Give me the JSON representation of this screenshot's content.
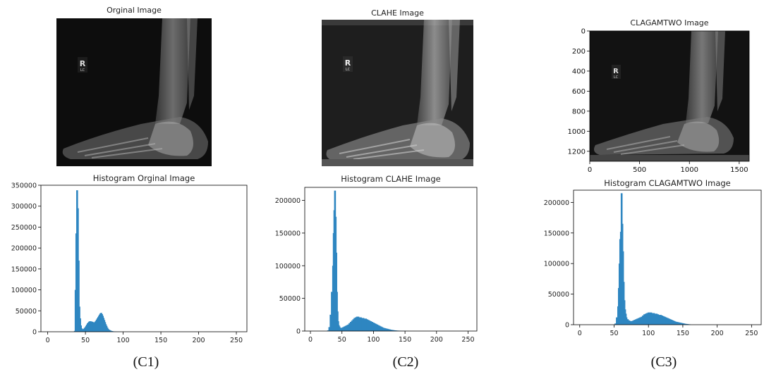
{
  "images": [
    {
      "title": "Orginal Image",
      "marker": "R",
      "marker_sub": "LC"
    },
    {
      "title": "CLAHE Image",
      "marker": "R",
      "marker_sub": "LC"
    },
    {
      "title": "CLAGAMTWO Image",
      "marker": "R",
      "marker_sub": "LC",
      "axes": {
        "x_ticks": [
          "0",
          "500",
          "1000",
          "1500"
        ],
        "y_ticks": [
          "0",
          "200",
          "400",
          "600",
          "800",
          "1000",
          "1200"
        ]
      }
    }
  ],
  "captions": [
    "(C1)",
    "(C2)",
    "(C3)"
  ],
  "chart_data": [
    {
      "type": "bar",
      "title": "Histogram Orginal Image",
      "xlim": [
        -9,
        264
      ],
      "ylim": [
        0,
        350000
      ],
      "x_ticks": [
        0,
        50,
        100,
        150,
        200,
        250
      ],
      "y_ticks": [
        0,
        50000,
        100000,
        150000,
        200000,
        250000,
        300000,
        350000
      ],
      "x_tick_labels": [
        "0",
        "50",
        "100",
        "150",
        "200",
        "250"
      ],
      "y_tick_labels": [
        "0",
        "50000",
        "100000",
        "150000",
        "200000",
        "250000",
        "300000",
        "350000"
      ],
      "color": "#2e86c1",
      "x": [
        36,
        37,
        38,
        39,
        40,
        41,
        42,
        43,
        44,
        45,
        46,
        47,
        48,
        49,
        50,
        51,
        52,
        53,
        54,
        55,
        56,
        57,
        58,
        59,
        60,
        61,
        62,
        63,
        64,
        65,
        66,
        67,
        68,
        69,
        70,
        71,
        72,
        73,
        74,
        75,
        76,
        77,
        78,
        79,
        80,
        81,
        82,
        83,
        84,
        85,
        86,
        87,
        88,
        89,
        90,
        92,
        94,
        96
      ],
      "values": [
        2000,
        100000,
        235000,
        338000,
        295000,
        170000,
        60000,
        32000,
        15000,
        8000,
        6000,
        6000,
        7000,
        9000,
        11000,
        14000,
        17000,
        20000,
        22000,
        24000,
        25000,
        25000,
        24000,
        24000,
        23000,
        22000,
        22000,
        24000,
        26000,
        29000,
        32000,
        35000,
        38000,
        41000,
        44000,
        45000,
        42000,
        38000,
        33000,
        28000,
        23000,
        18000,
        14000,
        10000,
        7000,
        5000,
        4000,
        3000,
        2200,
        1600,
        1200,
        900,
        700,
        500,
        400,
        300,
        200,
        100
      ]
    },
    {
      "type": "bar",
      "title": "Histogram CLAHE Image",
      "xlim": [
        -9,
        264
      ],
      "ylim": [
        0,
        220000
      ],
      "x_ticks": [
        0,
        50,
        100,
        150,
        200,
        250
      ],
      "y_ticks": [
        0,
        50000,
        100000,
        150000,
        200000
      ],
      "x_tick_labels": [
        "0",
        "50",
        "100",
        "150",
        "200",
        "250"
      ],
      "y_tick_labels": [
        "0",
        "50000",
        "100000",
        "150000",
        "200000"
      ],
      "color": "#2e86c1",
      "x": [
        28,
        30,
        32,
        34,
        36,
        37,
        38,
        39,
        40,
        41,
        42,
        43,
        44,
        45,
        46,
        48,
        50,
        52,
        54,
        56,
        58,
        60,
        62,
        64,
        66,
        68,
        70,
        72,
        74,
        76,
        78,
        80,
        82,
        84,
        86,
        88,
        90,
        92,
        94,
        96,
        98,
        100,
        102,
        104,
        106,
        108,
        110,
        112,
        114,
        116,
        118,
        120,
        122,
        124,
        126,
        128,
        130,
        132,
        134,
        136,
        138,
        140,
        142,
        144,
        146,
        148,
        150,
        152,
        155
      ],
      "values": [
        1000,
        6000,
        25000,
        60000,
        100000,
        150000,
        185000,
        215000,
        175000,
        120000,
        60000,
        30000,
        15000,
        9000,
        7000,
        5000,
        5000,
        6000,
        7000,
        8000,
        9000,
        10000,
        12000,
        14000,
        16000,
        18000,
        20000,
        21000,
        22000,
        22000,
        21000,
        21000,
        20000,
        20000,
        19000,
        19000,
        18000,
        17000,
        16000,
        15000,
        14000,
        13000,
        12000,
        11000,
        10000,
        9000,
        8000,
        7000,
        6000,
        5000,
        4500,
        4000,
        3500,
        3000,
        2500,
        2000,
        1700,
        1400,
        1100,
        900,
        700,
        600,
        500,
        400,
        300,
        250,
        200,
        150,
        100
      ]
    },
    {
      "type": "bar",
      "title": "Histogram CLAGAMTWO Image",
      "xlim": [
        -9,
        264
      ],
      "ylim": [
        0,
        220000
      ],
      "x_ticks": [
        0,
        50,
        100,
        150,
        200,
        250
      ],
      "y_ticks": [
        0,
        50000,
        100000,
        150000,
        200000
      ],
      "x_tick_labels": [
        "0",
        "50",
        "100",
        "150",
        "200",
        "250"
      ],
      "y_tick_labels": [
        "0",
        "50000",
        "100000",
        "150000",
        "200000"
      ],
      "color": "#2e86c1",
      "x": [
        52,
        54,
        56,
        57,
        58,
        59,
        60,
        61,
        62,
        63,
        64,
        65,
        66,
        67,
        68,
        70,
        72,
        74,
        76,
        78,
        80,
        82,
        84,
        86,
        88,
        90,
        92,
        94,
        96,
        98,
        100,
        102,
        104,
        106,
        108,
        110,
        112,
        114,
        116,
        118,
        120,
        122,
        124,
        126,
        128,
        130,
        132,
        134,
        136,
        138,
        140,
        142,
        144,
        146,
        148,
        150,
        152,
        154,
        156,
        158,
        160
      ],
      "values": [
        2000,
        12000,
        30000,
        60000,
        100000,
        140000,
        152000,
        215000,
        165000,
        120000,
        70000,
        40000,
        25000,
        18000,
        12000,
        9000,
        7000,
        6000,
        6000,
        7000,
        8000,
        9000,
        10000,
        11000,
        12000,
        13000,
        15000,
        17000,
        18000,
        19000,
        20000,
        20000,
        20000,
        19000,
        19000,
        18000,
        18000,
        17000,
        16000,
        16000,
        15000,
        14000,
        13000,
        12000,
        11000,
        10000,
        9000,
        8000,
        7000,
        6000,
        5000,
        4500,
        4000,
        3500,
        3000,
        2500,
        2000,
        1500,
        1200,
        900,
        600
      ]
    }
  ]
}
